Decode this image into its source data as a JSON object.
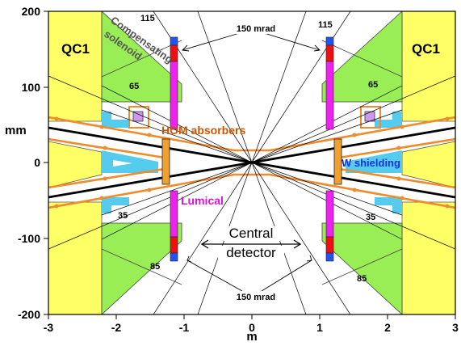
{
  "axes": {
    "xlabel": "m",
    "ylabel": "mm",
    "xticks": [
      "-3",
      "-2",
      "-1",
      "0",
      "1",
      "2",
      "3"
    ],
    "yticks": [
      "200",
      "100",
      "0",
      "-100",
      "-200"
    ],
    "xlim": [
      -3,
      3
    ],
    "ylim": [
      -200,
      200
    ]
  },
  "labels": {
    "qc1_left": "QC1",
    "qc1_right": "QC1",
    "compensating": "Compensating",
    "solenoid": "solenoid",
    "hom_absorbers": "HOM absorbers",
    "w_shielding": "W shielding",
    "lumical": "Lumical",
    "central": "Central",
    "detector": "detector",
    "mrad_top": "150 mrad",
    "mrad_bottom": "150 mrad",
    "angle_115_left": "115",
    "angle_115_right": "115",
    "angle_65_left": "65",
    "angle_65_right": "65",
    "angle_35_left": "35",
    "angle_35_right": "35",
    "angle_85_left": "85",
    "angle_85_right": "85"
  },
  "colors": {
    "qc1": "#ffff66",
    "solenoid": "#99ee55",
    "beam_pipe": "#f08a2b",
    "absorber": "#55ccee",
    "lumical": "#ee22ee",
    "lumical_red": "#ee1111",
    "lumical_blue": "#2255ee",
    "w_shielding": "#f0a030",
    "hom_text": "#cc5500",
    "w_text": "#1133dd",
    "lumical_text": "#dd11dd",
    "solenoid_text": "#555555"
  }
}
